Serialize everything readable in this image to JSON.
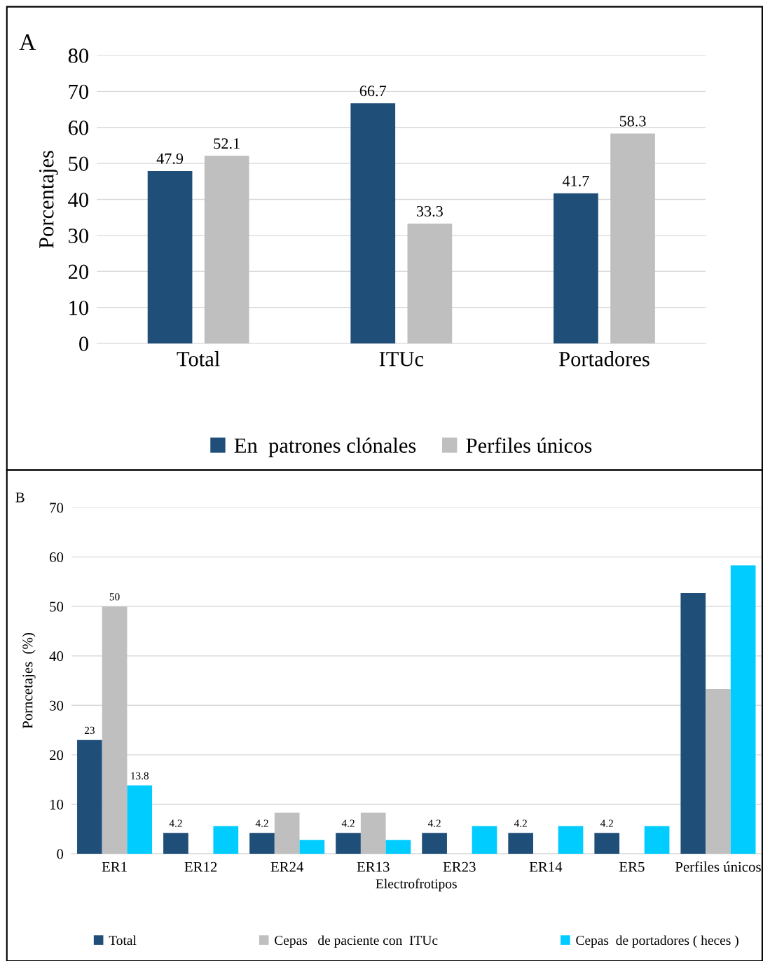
{
  "chart_data": [
    {
      "type": "bar",
      "ylabel": "Porcentajes",
      "categories": [
        "Total",
        "ITUc",
        "Portadores"
      ],
      "series": [
        {
          "name": "En  patrones clónales",
          "color": "#1f4e79",
          "values": [
            47.9,
            66.7,
            41.7
          ]
        },
        {
          "name": "Perfiles únicos",
          "color": "#bfbfbf",
          "values": [
            52.1,
            33.3,
            58.3
          ]
        }
      ],
      "ylim": [
        0,
        80
      ],
      "yticks": [
        0,
        10,
        20,
        30,
        40,
        50,
        60,
        70,
        80
      ],
      "grid": "y",
      "legend": "bottom",
      "data_labels": true,
      "annotations": [
        "A"
      ]
    },
    {
      "type": "bar",
      "xlabel": "Electrofrotipos",
      "ylabel": "Porncetajes  (%)",
      "categories": [
        "ER1",
        "ER12",
        "ER24",
        "ER13",
        "ER23",
        "ER14",
        "ER5",
        "Perfiles únicos"
      ],
      "series": [
        {
          "name": "Total",
          "color": "#1f4e79",
          "values": [
            23,
            4.2,
            4.2,
            4.2,
            4.2,
            4.2,
            4.2,
            52.7
          ],
          "value_labels": [
            "23",
            "4.2",
            "4.2",
            "4.2",
            "4.2",
            "4.2",
            "4.2",
            null
          ]
        },
        {
          "name": "Cepas   de paciente con  ITUc",
          "color": "#bfbfbf",
          "values": [
            50,
            null,
            8.3,
            8.3,
            null,
            null,
            null,
            33.3
          ],
          "value_labels": [
            "50",
            null,
            null,
            null,
            null,
            null,
            null,
            null
          ]
        },
        {
          "name": "Cepas  de portadores ( heces )",
          "color": "#00ccff",
          "values": [
            13.8,
            5.6,
            2.8,
            2.8,
            5.6,
            5.6,
            5.6,
            58.3
          ],
          "value_labels": [
            "13.8",
            null,
            null,
            null,
            null,
            null,
            null,
            null
          ]
        }
      ],
      "ylim": [
        0,
        70
      ],
      "yticks": [
        0,
        10,
        20,
        30,
        40,
        50,
        60,
        70
      ],
      "grid": "y",
      "legend": "bottom",
      "annotations": [
        "B"
      ]
    }
  ]
}
